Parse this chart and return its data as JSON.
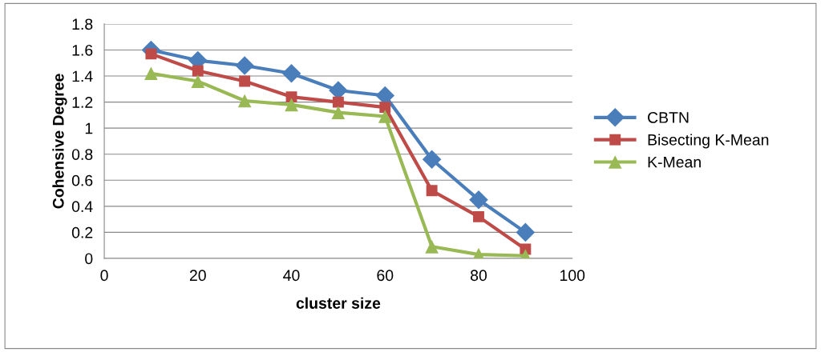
{
  "chart_data": {
    "type": "line",
    "xlabel": "cluster size",
    "ylabel": "Cohensive Degree",
    "x": [
      10,
      20,
      30,
      40,
      50,
      60,
      70,
      80,
      90
    ],
    "series": [
      {
        "name": "CBTN",
        "color": "#4a7ebb",
        "marker": "diamond",
        "values": [
          1.6,
          1.52,
          1.48,
          1.42,
          1.29,
          1.25,
          0.76,
          0.45,
          0.2
        ]
      },
      {
        "name": "Bisecting K-Mean",
        "color": "#be4b48",
        "marker": "square",
        "values": [
          1.57,
          1.44,
          1.36,
          1.24,
          1.2,
          1.16,
          0.52,
          0.32,
          0.07
        ]
      },
      {
        "name": "K-Mean",
        "color": "#98b954",
        "marker": "triangle",
        "values": [
          1.42,
          1.36,
          1.21,
          1.18,
          1.12,
          1.09,
          0.09,
          0.03,
          0.02
        ]
      }
    ],
    "xlim": [
      0,
      100
    ],
    "xticks": [
      0,
      20,
      40,
      60,
      80,
      100
    ],
    "ylim": [
      0,
      1.8
    ],
    "yticks": [
      0,
      0.2,
      0.4,
      0.6,
      0.8,
      1,
      1.2,
      1.4,
      1.6,
      1.8
    ],
    "grid": "y",
    "legend": "right",
    "line_style": "solid"
  }
}
